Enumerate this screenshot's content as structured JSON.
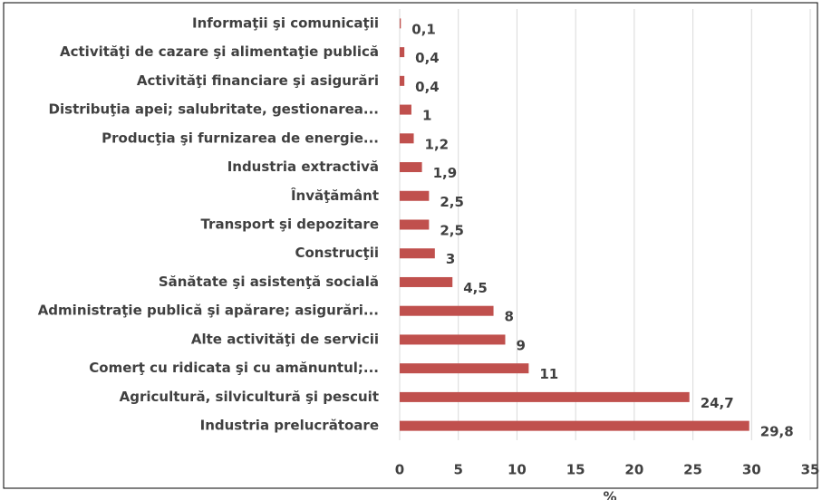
{
  "chart_data": {
    "type": "barh",
    "categories": [
      "Informaţii şi comunicaţii",
      "Activităţi de cazare şi alimentaţie publică",
      "Activităţi financiare şi asigurări",
      "Distribuţia apei; salubritate, gestionarea...",
      "Producţia şi furnizarea de energie...",
      "Industria extractivă",
      "Învăţământ",
      "Transport şi depozitare",
      "Construcţii",
      "Sănătate şi asistenţă socială",
      "Administraţie publică şi apărare; asigurări...",
      "Alte activităţi de servicii",
      "Comerţ cu ridicata şi cu amănuntul;...",
      "Agricultură, silvicultură şi pescuit",
      "Industria prelucrătoare"
    ],
    "values": [
      0.1,
      0.4,
      0.4,
      1,
      1.2,
      1.9,
      2.5,
      2.5,
      3,
      4.5,
      8,
      9,
      11,
      24.7,
      29.8
    ],
    "value_labels": [
      "0,1",
      "0,4",
      "0,4",
      "1",
      "1,2",
      "1,9",
      "2,5",
      "2,5",
      "3",
      "4,5",
      "8",
      "9",
      "11",
      "24,7",
      "29,8"
    ],
    "color": "#c0504d",
    "xlim": [
      0,
      35
    ],
    "xticks": [
      0,
      5,
      10,
      15,
      20,
      25,
      30,
      35
    ],
    "xlabel": "%",
    "grid": true
  }
}
